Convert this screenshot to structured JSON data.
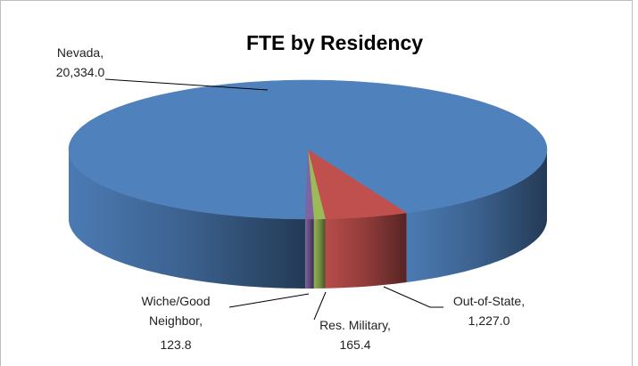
{
  "chart_data": {
    "type": "pie",
    "title": "FTE by Residency",
    "categories": [
      "Nevada",
      "Out-of-State",
      "Res. Military",
      "Wiche/Good Neighbor"
    ],
    "values": [
      20334.0,
      1227.0,
      165.4,
      123.8
    ],
    "value_labels": [
      "20,334.0",
      "1,227.0",
      "165.4",
      "123.8"
    ],
    "label_separator": ",",
    "colors": [
      "#4f81bd",
      "#c0504d",
      "#9bbb59",
      "#8064a2"
    ],
    "three_d": true
  }
}
